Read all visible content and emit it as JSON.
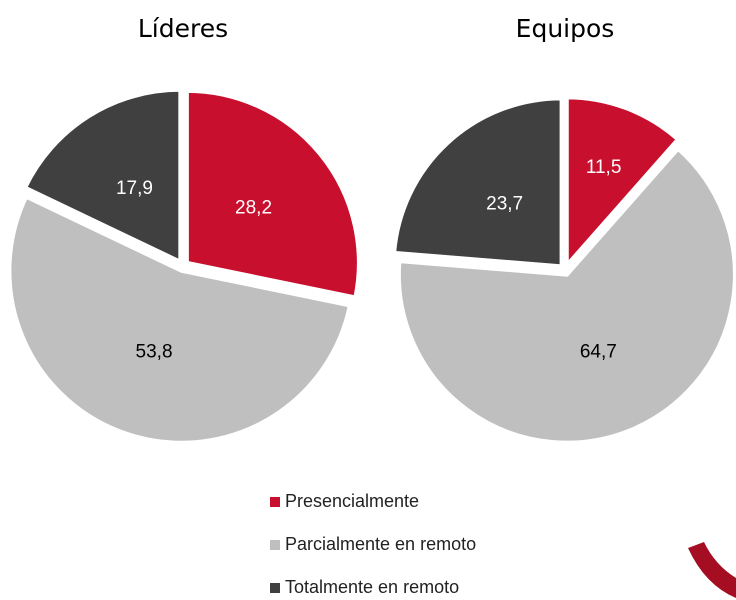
{
  "chart_data": [
    {
      "type": "pie",
      "title": "Líderes",
      "categories": [
        "Presencialmente",
        "Parcialmente en remoto",
        "Totalmente en remoto"
      ],
      "values": [
        28.2,
        53.8,
        17.9
      ],
      "value_labels": [
        "28,2",
        "53,8",
        "17,9"
      ],
      "colors": [
        "#c8102e",
        "#bfbfbf",
        "#404040"
      ]
    },
    {
      "type": "pie",
      "title": "Equipos",
      "categories": [
        "Presencialmente",
        "Parcialmente en remoto",
        "Totalmente en remoto"
      ],
      "values": [
        11.5,
        64.7,
        23.7
      ],
      "value_labels": [
        "11,5",
        "64,7",
        "23,7"
      ],
      "colors": [
        "#c8102e",
        "#bfbfbf",
        "#404040"
      ]
    }
  ]
}
